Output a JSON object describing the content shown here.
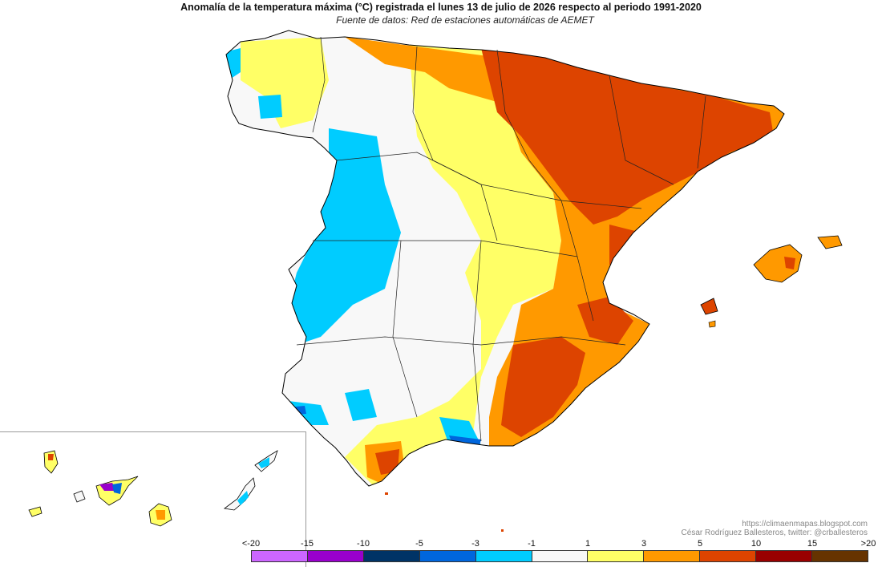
{
  "title": "Anomalía de la temperatura máxima (°C) registrada el lunes 13 de julio de 2026 respecto al periodo 1991-2020",
  "subtitle": "Fuente de datos: Red de estaciones automáticas de AEMET",
  "credits": {
    "line1": "https://climaenmapas.blogspot.com",
    "line2": "César Rodríguez Ballesteros, twitter: @crballesteros"
  },
  "legend": {
    "ticks": [
      "<-20",
      "-15",
      "-10",
      "-5",
      "-3",
      "-1",
      "1",
      "3",
      "5",
      "10",
      "15",
      ">20"
    ],
    "colors": [
      "#cc66ff",
      "#9900cc",
      "#003366",
      "#0066dd",
      "#00ccff",
      "#f8f8f8",
      "#ffff66",
      "#ff9900",
      "#dd4400",
      "#990000",
      "#663300"
    ]
  },
  "palette": {
    "coast": "#000000",
    "background": "#ffffff"
  }
}
